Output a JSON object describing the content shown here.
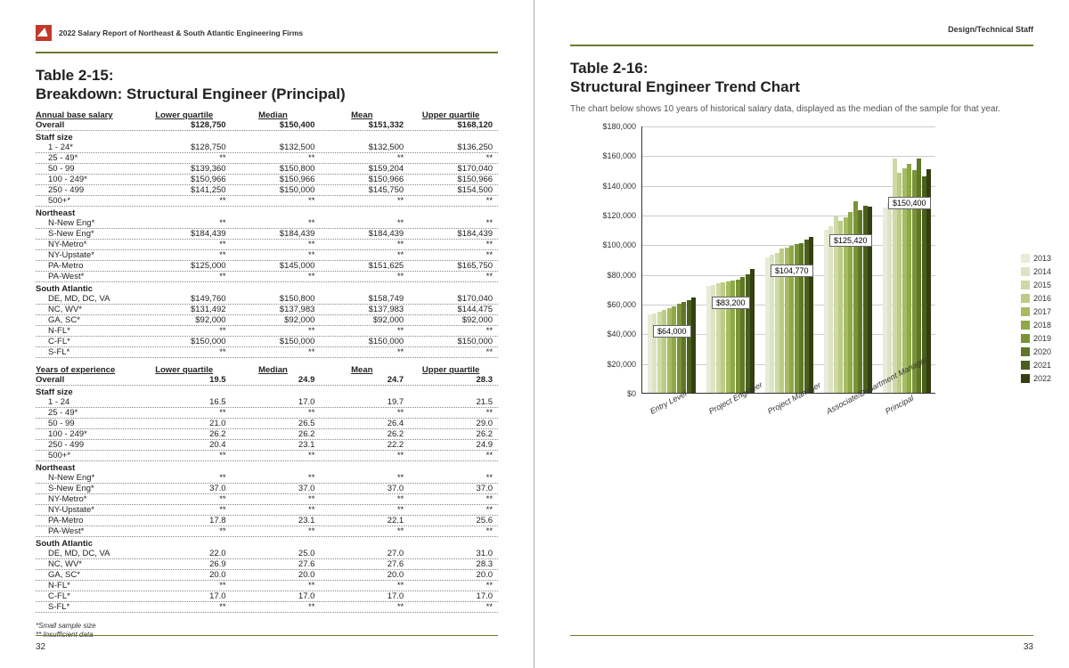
{
  "header_left": "2022 Salary Report of Northeast & South Atlantic Engineering Firms",
  "header_right": "Design/Technical Staff",
  "page_left_num": "32",
  "page_right_num": "33",
  "table_left": {
    "title": "Table 2-15:\nBreakdown: Structural Engineer (Principal)",
    "columns": [
      "Annual base salary",
      "Lower quartile",
      "Median",
      "Mean",
      "Upper quartile"
    ],
    "overall": [
      "Overall",
      "$128,750",
      "$150,400",
      "$151,332",
      "$168,120"
    ],
    "sections": [
      {
        "name": "Staff size",
        "rows": [
          [
            "1 - 24*",
            "$128,750",
            "$132,500",
            "$132,500",
            "$136,250"
          ],
          [
            "25 - 49*",
            "**",
            "**",
            "**",
            "**"
          ],
          [
            "50 - 99",
            "$139,360",
            "$150,800",
            "$159,204",
            "$170,040"
          ],
          [
            "100 - 249*",
            "$150,966",
            "$150,966",
            "$150,966",
            "$150,966"
          ],
          [
            "250 - 499",
            "$141,250",
            "$150,000",
            "$145,750",
            "$154,500"
          ],
          [
            "500+*",
            "**",
            "**",
            "**",
            "**"
          ]
        ]
      },
      {
        "name": "Northeast",
        "rows": [
          [
            "N-New Eng*",
            "**",
            "**",
            "**",
            "**"
          ],
          [
            "S-New Eng*",
            "$184,439",
            "$184,439",
            "$184,439",
            "$184,439"
          ],
          [
            "NY-Metro*",
            "**",
            "**",
            "**",
            "**"
          ],
          [
            "NY-Upstate*",
            "**",
            "**",
            "**",
            "**"
          ],
          [
            "PA-Metro",
            "$125,000",
            "$145,000",
            "$151,625",
            "$165,750"
          ],
          [
            "PA-West*",
            "**",
            "**",
            "**",
            "**"
          ]
        ]
      },
      {
        "name": "South Atlantic",
        "rows": [
          [
            "DE, MD, DC, VA",
            "$149,760",
            "$150,800",
            "$158,749",
            "$170,040"
          ],
          [
            "NC, WV*",
            "$131,492",
            "$137,983",
            "$137,983",
            "$144,475"
          ],
          [
            "GA, SC*",
            "$92,000",
            "$92,000",
            "$92,000",
            "$92,000"
          ],
          [
            "N-FL*",
            "**",
            "**",
            "**",
            "**"
          ],
          [
            "C-FL*",
            "$150,000",
            "$150,000",
            "$150,000",
            "$150,000"
          ],
          [
            "S-FL*",
            "**",
            "**",
            "**",
            "**"
          ]
        ]
      }
    ],
    "columns2": [
      "Years of experience",
      "Lower quartile",
      "Median",
      "Mean",
      "Upper quartile"
    ],
    "overall2": [
      "Overall",
      "19.5",
      "24.9",
      "24.7",
      "28.3"
    ],
    "sections2": [
      {
        "name": "Staff size",
        "rows": [
          [
            "1 - 24",
            "16.5",
            "17.0",
            "19.7",
            "21.5"
          ],
          [
            "25 - 49*",
            "**",
            "**",
            "**",
            "**"
          ],
          [
            "50 - 99",
            "21.0",
            "26.5",
            "26.4",
            "29.0"
          ],
          [
            "100 - 249*",
            "26.2",
            "26.2",
            "26.2",
            "26.2"
          ],
          [
            "250 - 499",
            "20.4",
            "23.1",
            "22.2",
            "24.9"
          ],
          [
            "500+*",
            "**",
            "**",
            "**",
            "**"
          ]
        ]
      },
      {
        "name": "Northeast",
        "rows": [
          [
            "N-New Eng*",
            "**",
            "**",
            "**",
            "**"
          ],
          [
            "S-New Eng*",
            "37.0",
            "37.0",
            "37.0",
            "37.0"
          ],
          [
            "NY-Metro*",
            "**",
            "**",
            "**",
            "**"
          ],
          [
            "NY-Upstate*",
            "**",
            "**",
            "**",
            "**"
          ],
          [
            "PA-Metro",
            "17.8",
            "23.1",
            "22.1",
            "25.6"
          ],
          [
            "PA-West*",
            "**",
            "**",
            "**",
            "**"
          ]
        ]
      },
      {
        "name": "South Atlantic",
        "rows": [
          [
            "DE, MD, DC, VA",
            "22.0",
            "25.0",
            "27.0",
            "31.0"
          ],
          [
            "NC, WV*",
            "26.9",
            "27.6",
            "27.6",
            "28.3"
          ],
          [
            "GA, SC*",
            "20.0",
            "20.0",
            "20.0",
            "20.0"
          ],
          [
            "N-FL*",
            "**",
            "**",
            "**",
            "**"
          ],
          [
            "C-FL*",
            "17.0",
            "17.0",
            "17.0",
            "17.0"
          ],
          [
            "S-FL*",
            "**",
            "**",
            "**",
            "**"
          ]
        ]
      }
    ],
    "footnote": "*Small sample size\n** Insufficient data"
  },
  "table_right": {
    "title": "Table 2-16:\nStructural Engineer Trend Chart",
    "desc": "The chart below shows 10 years of historical salary data, displayed as the median of the sample for that year."
  },
  "chart": {
    "y_max": 180000,
    "y_step": 20000,
    "y_ticks": [
      "$0",
      "$20,000",
      "$40,000",
      "$60,000",
      "$80,000",
      "$100,000",
      "$120,000",
      "$140,000",
      "$160,000",
      "$180,000"
    ],
    "categories": [
      "Entry Level",
      "Project Engineer",
      "Project Manager",
      "Associate/Department Manager",
      "Principal"
    ],
    "years": [
      "2013",
      "2014",
      "2015",
      "2016",
      "2017",
      "2018",
      "2019",
      "2020",
      "2021",
      "2022"
    ],
    "colors": [
      "#e8ecd8",
      "#dde4c4",
      "#ced9a6",
      "#bccc86",
      "#a6bb62",
      "#8fa848",
      "#7a9337",
      "#5f7727",
      "#4a5f1d",
      "#343f12"
    ],
    "series": [
      [
        53000,
        53500,
        54500,
        56000,
        57000,
        58500,
        60000,
        61000,
        62500,
        64000
      ],
      [
        72000,
        72500,
        74000,
        74500,
        75000,
        75500,
        76000,
        78000,
        80000,
        83200
      ],
      [
        91000,
        93000,
        94500,
        97000,
        98000,
        99000,
        100000,
        101000,
        103000,
        104770
      ],
      [
        110000,
        112000,
        119000,
        116000,
        118000,
        122000,
        129000,
        123000,
        126000,
        125420
      ],
      [
        125000,
        128000,
        158000,
        148000,
        151000,
        154000,
        150000,
        158000,
        146000,
        150400
      ]
    ],
    "callouts": [
      {
        "text": "$64,000",
        "cat": 0
      },
      {
        "text": "$83,200",
        "cat": 1
      },
      {
        "text": "$104,770",
        "cat": 2
      },
      {
        "text": "$125,420",
        "cat": 3
      },
      {
        "text": "$150,400",
        "cat": 4
      }
    ]
  }
}
